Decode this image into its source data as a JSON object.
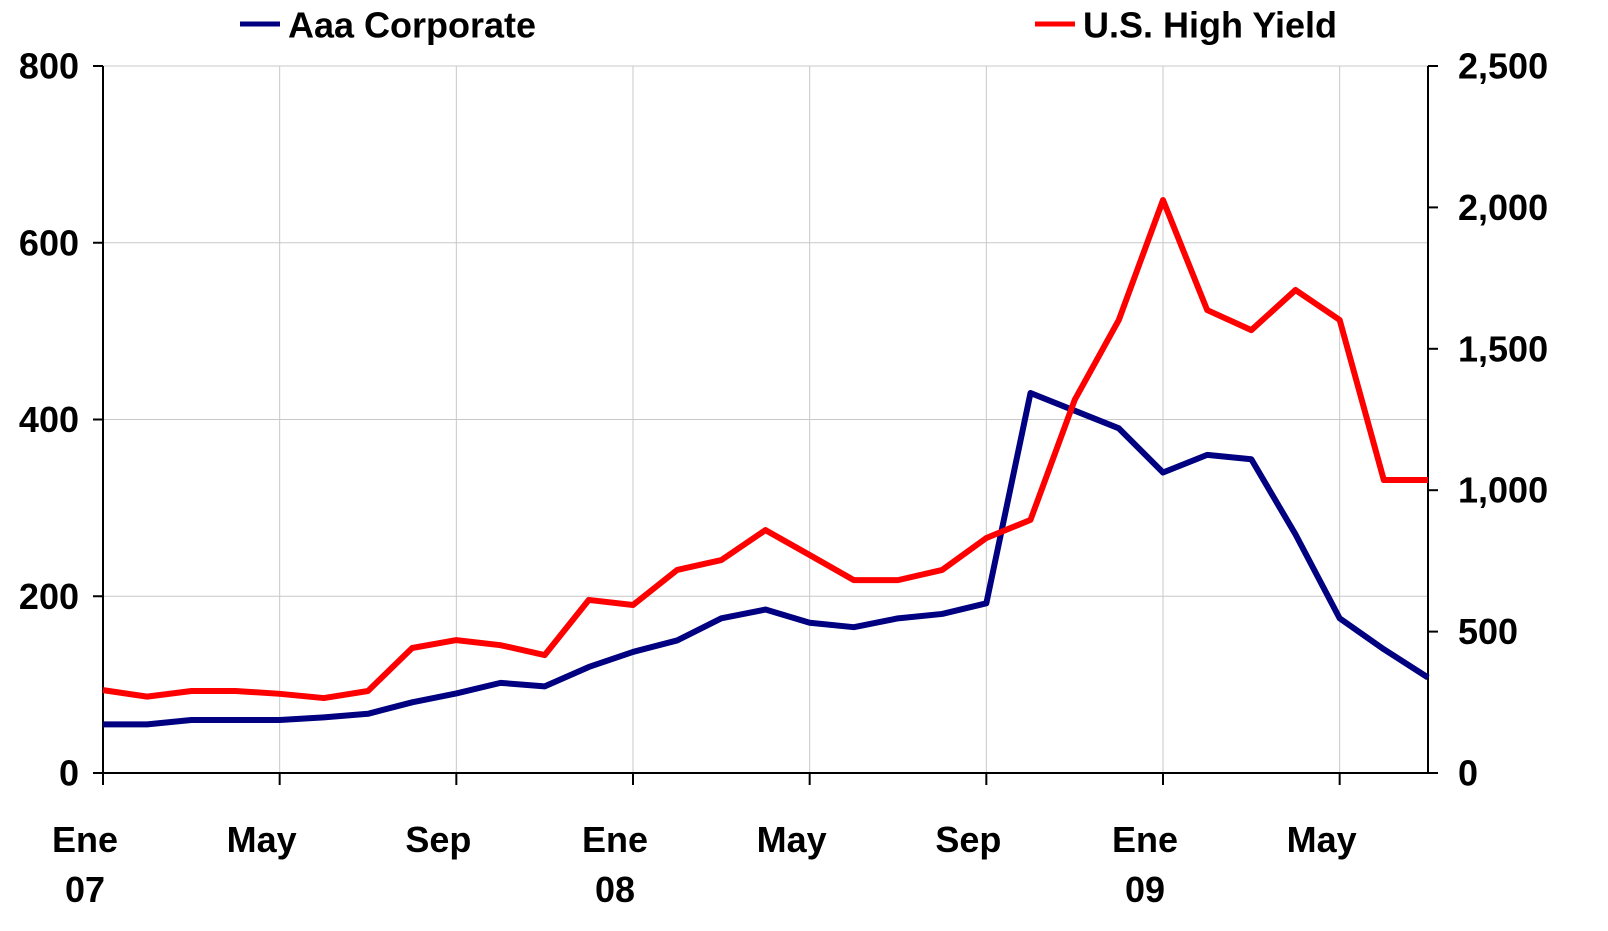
{
  "chart_data": {
    "type": "line",
    "categories": [
      "Ene 07",
      null,
      null,
      null,
      "May",
      null,
      null,
      null,
      "Sep",
      null,
      null,
      null,
      "Ene 08",
      null,
      null,
      null,
      "May",
      null,
      null,
      null,
      "Sep",
      null,
      null,
      null,
      "Ene 09",
      null,
      null,
      null,
      "May",
      null,
      null
    ],
    "series": [
      {
        "name": "Aaa Corporate",
        "color": "#000080",
        "axis": "y",
        "values": [
          55,
          55,
          60,
          60,
          60,
          63,
          67,
          80,
          90,
          102,
          98,
          120,
          137,
          150,
          175,
          185,
          170,
          165,
          175,
          180,
          192,
          430,
          410,
          390,
          340,
          360,
          355,
          270,
          175,
          140,
          108
        ]
      },
      {
        "name": "U.S. High Yield",
        "color": "#ff0000",
        "axis": "y2",
        "values": [
          293,
          270,
          290,
          290,
          280,
          265,
          290,
          442,
          470,
          452,
          417,
          612,
          594,
          718,
          753,
          859,
          771,
          682,
          682,
          718,
          831,
          895,
          1319,
          1602,
          2026,
          1637,
          1566,
          1708,
          1602,
          1036,
          1036
        ]
      }
    ],
    "ylim": [
      0,
      800
    ],
    "yticks": [
      0,
      200,
      400,
      600,
      800
    ],
    "y2lim": [
      0,
      2500
    ],
    "y2ticks": [
      0,
      500,
      {
        "value": 1000,
        "label": "1,000"
      },
      {
        "value": 1500,
        "label": "1,500"
      },
      {
        "value": 2000,
        "label": "2,000"
      },
      {
        "value": 2500,
        "label": "2,500"
      }
    ],
    "grid": true,
    "legend": "top"
  }
}
